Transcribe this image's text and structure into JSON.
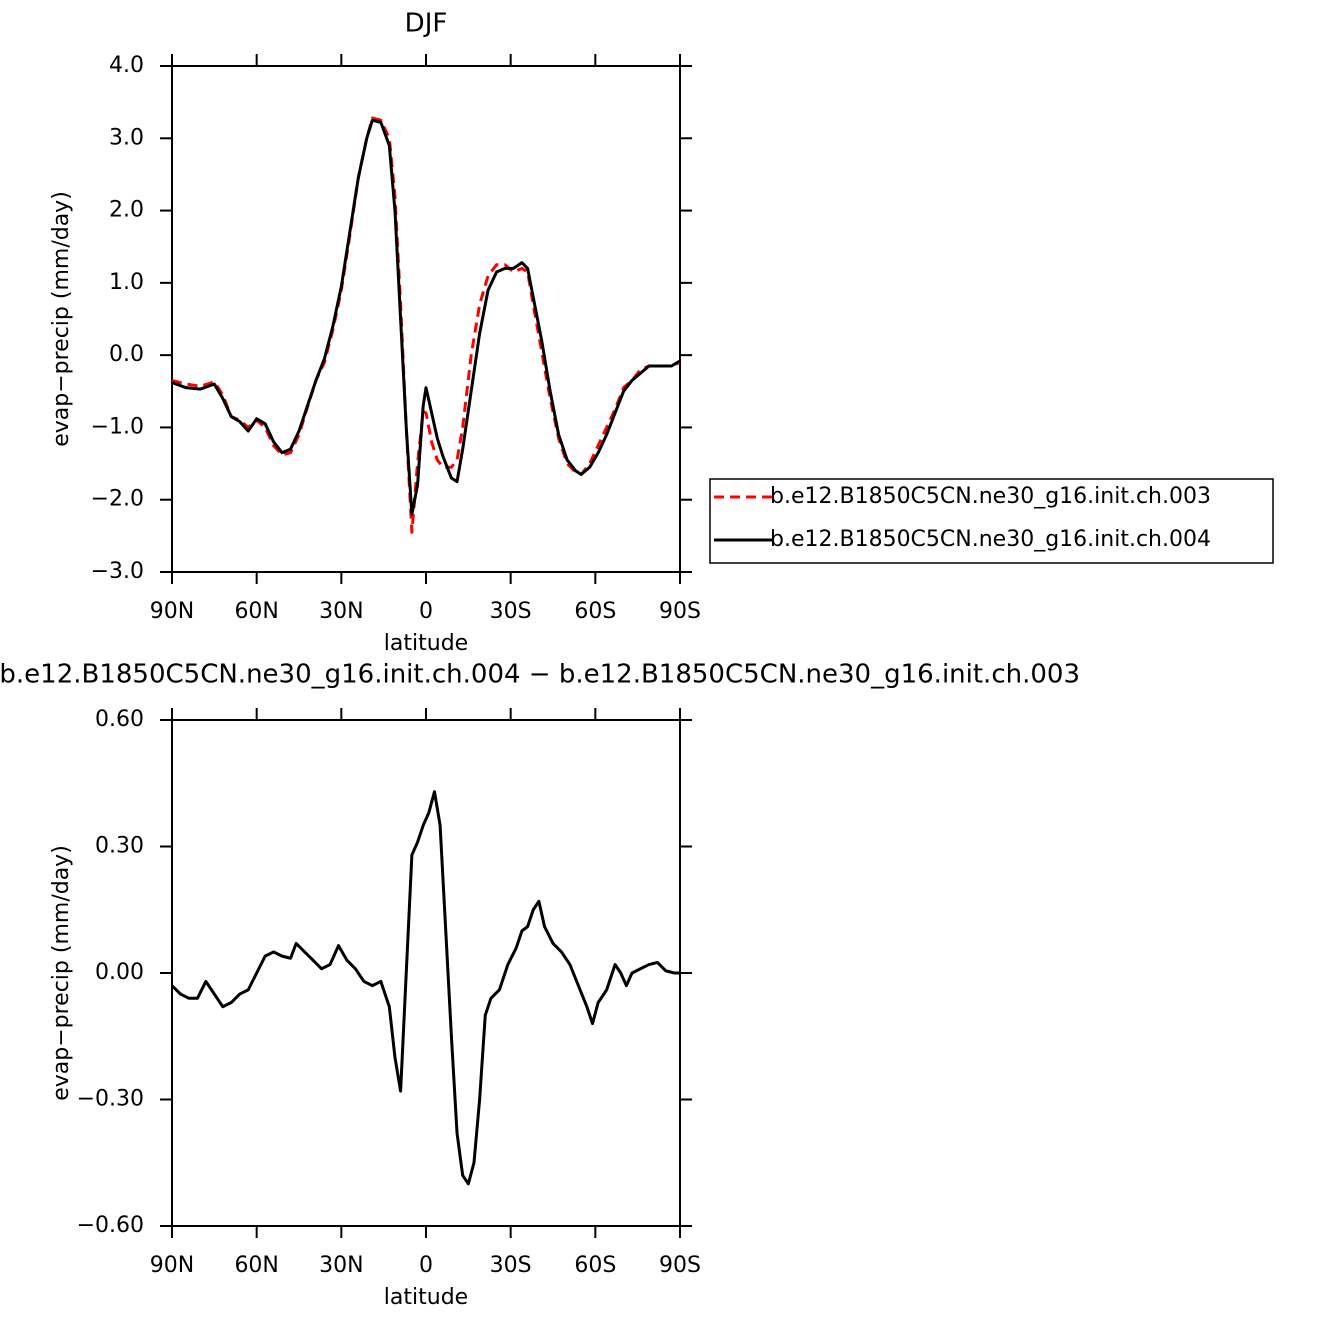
{
  "chart_data": [
    {
      "type": "line",
      "title": "DJF",
      "xlabel": "latitude",
      "ylabel": "evap−precip (mm/day)",
      "x": [
        90,
        85,
        80,
        75,
        72,
        69,
        66,
        63,
        60,
        57,
        54,
        51,
        48,
        45,
        42,
        39,
        36,
        33,
        30,
        27,
        24,
        21,
        19,
        16,
        13,
        11,
        9,
        7,
        5,
        3,
        1,
        0,
        -2,
        -4,
        -6,
        -9,
        -11,
        -13,
        -16,
        -19,
        -22,
        -25,
        -28,
        -31,
        -34,
        -36,
        -38,
        -41,
        -44,
        -47,
        -50,
        -53,
        -55,
        -58,
        -61,
        -64,
        -67,
        -70,
        -73,
        -76,
        -79,
        -84,
        -87,
        -90
      ],
      "xlim": [
        90,
        -90
      ],
      "xticks": [
        {
          "value": 90,
          "label": "90N"
        },
        {
          "value": 60,
          "label": "60N"
        },
        {
          "value": 30,
          "label": "30N"
        },
        0,
        {
          "value": -30,
          "label": "30S"
        },
        {
          "value": -60,
          "label": "60S"
        },
        {
          "value": -90,
          "label": "90S"
        }
      ],
      "ylim": [
        -3,
        4
      ],
      "yticks": [
        {
          "value": -3,
          "label": "−3.0"
        },
        {
          "value": -2,
          "label": "−2.0"
        },
        {
          "value": -1,
          "label": "−1.0"
        },
        {
          "value": 0,
          "label": "0.0"
        },
        {
          "value": 1,
          "label": "1.0"
        },
        {
          "value": 2,
          "label": "2.0"
        },
        {
          "value": 3,
          "label": "3.0"
        },
        {
          "value": 4,
          "label": "4.0"
        }
      ],
      "legend": "right",
      "series": [
        {
          "name": "b.e12.B1850C5CN.ne30_g16.init.ch.003",
          "color": "#ff0000",
          "linestyle": "dashed",
          "values": [
            -0.35,
            -0.4,
            -0.43,
            -0.37,
            -0.55,
            -0.85,
            -0.9,
            -1.0,
            -0.9,
            -1.0,
            -1.25,
            -1.38,
            -1.35,
            -1.1,
            -0.72,
            -0.35,
            -0.1,
            0.35,
            0.9,
            1.65,
            2.45,
            3.0,
            3.28,
            3.25,
            3.0,
            2.2,
            0.7,
            -1.0,
            -2.45,
            -1.5,
            -0.78,
            -0.8,
            -1.2,
            -1.45,
            -1.55,
            -1.55,
            -1.45,
            -1.0,
            0.0,
            0.7,
            1.1,
            1.25,
            1.25,
            1.15,
            1.2,
            1.15,
            0.7,
            0.05,
            -0.6,
            -1.15,
            -1.5,
            -1.62,
            -1.65,
            -1.5,
            -1.25,
            -1.0,
            -0.75,
            -0.45,
            -0.35,
            -0.2,
            -0.15,
            -0.15,
            -0.15,
            -0.1
          ]
        },
        {
          "name": "b.e12.B1850C5CN.ne30_g16.init.ch.004",
          "color": "#000000",
          "linestyle": "solid",
          "values": [
            -0.38,
            -0.45,
            -0.47,
            -0.4,
            -0.6,
            -0.85,
            -0.92,
            -1.05,
            -0.88,
            -0.95,
            -1.2,
            -1.35,
            -1.3,
            -1.05,
            -0.7,
            -0.35,
            -0.05,
            0.4,
            0.95,
            1.7,
            2.45,
            3.0,
            3.25,
            3.22,
            2.9,
            2.0,
            0.5,
            -1.0,
            -2.2,
            -1.8,
            -0.7,
            -0.45,
            -0.8,
            -1.15,
            -1.4,
            -1.7,
            -1.75,
            -1.3,
            -0.5,
            0.3,
            0.9,
            1.15,
            1.2,
            1.2,
            1.28,
            1.2,
            0.8,
            0.2,
            -0.5,
            -1.1,
            -1.45,
            -1.6,
            -1.65,
            -1.55,
            -1.35,
            -1.1,
            -0.8,
            -0.5,
            -0.35,
            -0.25,
            -0.15,
            -0.15,
            -0.15,
            -0.08
          ]
        }
      ]
    },
    {
      "type": "line",
      "title": "b.e12.B1850C5CN.ne30_g16.init.ch.004 − b.e12.B1850C5CN.ne30_g16.init.ch.003",
      "xlabel": "latitude",
      "ylabel": "evap−precip (mm/day)",
      "x": [
        90,
        87,
        84,
        81,
        78,
        75,
        72,
        69,
        66,
        63,
        60,
        57,
        54,
        51,
        48,
        46,
        43,
        40,
        37,
        34,
        31,
        28,
        25,
        22,
        19,
        16,
        13,
        11,
        9,
        7,
        5,
        3,
        1,
        -1,
        -3,
        -5,
        -7,
        -9,
        -11,
        -13,
        -15,
        -17,
        -19,
        -21,
        -23,
        -26,
        -29,
        -32,
        -34,
        -36,
        -38,
        -40,
        -42,
        -45,
        -48,
        -51,
        -54,
        -57,
        -59,
        -61,
        -64,
        -67,
        -69,
        -71,
        -73,
        -76,
        -79,
        -82,
        -85,
        -88,
        -90
      ],
      "xlim": [
        90,
        -90
      ],
      "xticks": [
        {
          "value": 90,
          "label": "90N"
        },
        {
          "value": 60,
          "label": "60N"
        },
        {
          "value": 30,
          "label": "30N"
        },
        0,
        {
          "value": -30,
          "label": "30S"
        },
        {
          "value": -60,
          "label": "60S"
        },
        {
          "value": -90,
          "label": "90S"
        }
      ],
      "ylim": [
        -0.6,
        0.6
      ],
      "yticks": [
        {
          "value": -0.6,
          "label": "−0.60"
        },
        {
          "value": -0.3,
          "label": "−0.30"
        },
        {
          "value": 0,
          "label": "0.00"
        },
        {
          "value": 0.3,
          "label": "0.30"
        },
        {
          "value": 0.6,
          "label": "0.60"
        }
      ],
      "series": [
        {
          "color": "#000000",
          "linestyle": "solid",
          "values": [
            -0.03,
            -0.05,
            -0.06,
            -0.06,
            -0.02,
            -0.05,
            -0.08,
            -0.07,
            -0.05,
            -0.04,
            0.0,
            0.04,
            0.05,
            0.04,
            0.035,
            0.07,
            0.05,
            0.03,
            0.01,
            0.02,
            0.065,
            0.03,
            0.01,
            -0.02,
            -0.03,
            -0.02,
            -0.08,
            -0.2,
            -0.28,
            0.0,
            0.28,
            0.31,
            0.35,
            0.38,
            0.43,
            0.35,
            0.1,
            -0.15,
            -0.38,
            -0.48,
            -0.5,
            -0.45,
            -0.3,
            -0.1,
            -0.06,
            -0.04,
            0.02,
            0.06,
            0.1,
            0.11,
            0.15,
            0.17,
            0.11,
            0.07,
            0.05,
            0.02,
            -0.03,
            -0.08,
            -0.12,
            -0.07,
            -0.04,
            0.02,
            0.0,
            -0.03,
            0.0,
            0.01,
            0.02,
            0.025,
            0.005,
            0.0,
            0.0
          ]
        }
      ]
    }
  ]
}
